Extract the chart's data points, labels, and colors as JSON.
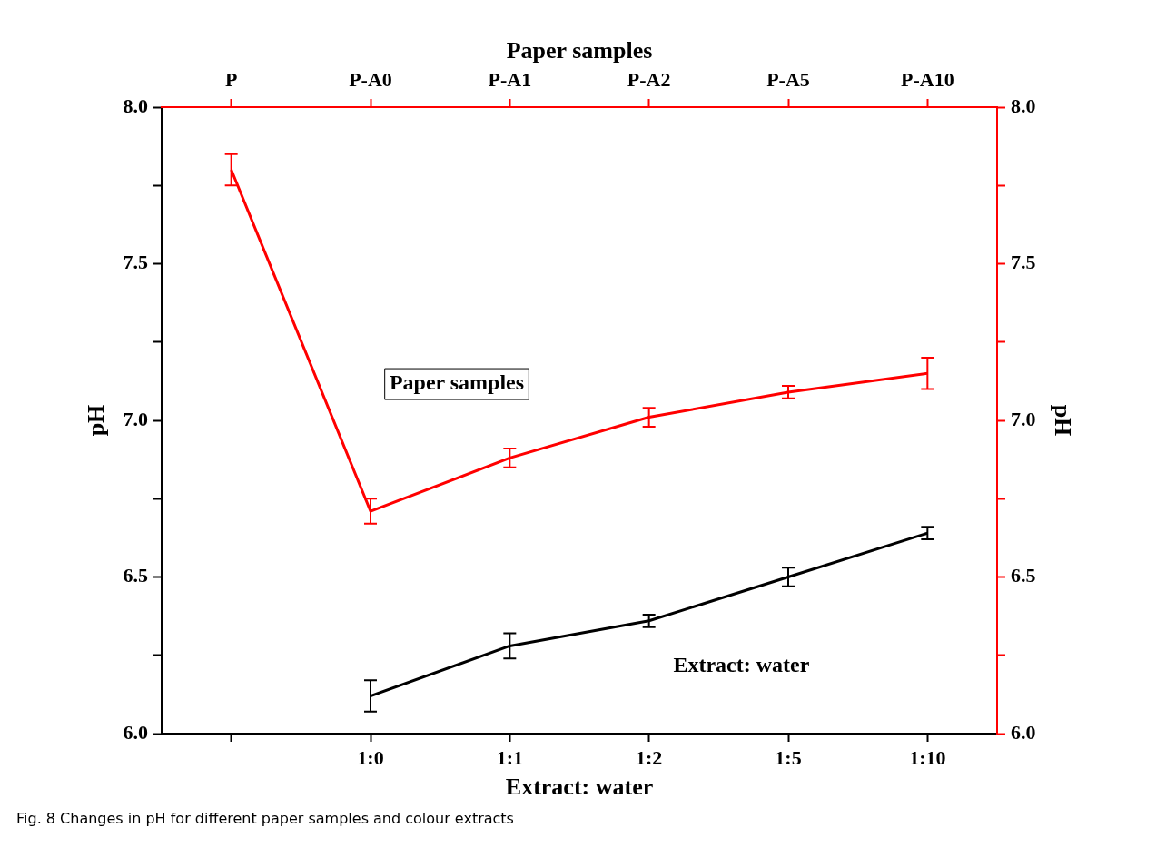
{
  "chart_data": [
    {
      "type": "line",
      "xlabel": "Paper samples",
      "ylabel": "pH",
      "categories": [
        "P",
        "P-A0",
        "P-A1",
        "P-A2",
        "P-A5",
        "P-A10"
      ],
      "ylim": [
        6,
        8
      ],
      "yticks": [
        {
          "value": 6,
          "label": "6.0"
        },
        {
          "value": 6.25,
          "label": null
        },
        {
          "value": 6.5,
          "label": "6.5"
        },
        {
          "value": 6.75,
          "label": null
        },
        {
          "value": 7,
          "label": "7.0"
        },
        {
          "value": 7.25,
          "label": null
        },
        {
          "value": 7.5,
          "label": "7.5"
        },
        {
          "value": 7.75,
          "label": null
        },
        {
          "value": 8,
          "label": "8.0"
        }
      ],
      "series": [
        {
          "name": "Paper samples",
          "color": "#ff0000",
          "values": [
            7.8,
            6.71,
            6.88,
            7.01,
            7.09,
            7.15
          ],
          "errors": [
            0.05,
            0.04,
            0.03,
            0.03,
            0.02,
            0.05
          ]
        }
      ],
      "grid": false,
      "legend": false,
      "marker": "none",
      "line_style": "solid"
    },
    {
      "type": "line",
      "xlabel": "Extract: water",
      "ylabel": "pH",
      "categories": [
        null,
        "1:0",
        "1:1",
        "1:2",
        "1:5",
        "1:10"
      ],
      "ylim": [
        6,
        8
      ],
      "yticks": [
        {
          "value": 6,
          "label": "6.0"
        },
        {
          "value": 6.25,
          "label": null
        },
        {
          "value": 6.5,
          "label": "6.5"
        },
        {
          "value": 6.75,
          "label": null
        },
        {
          "value": 7,
          "label": "7.0"
        },
        {
          "value": 7.25,
          "label": null
        },
        {
          "value": 7.5,
          "label": "7.5"
        },
        {
          "value": 7.75,
          "label": null
        },
        {
          "value": 8,
          "label": "8.0"
        }
      ],
      "series": [
        {
          "name": "Extract: water",
          "color": "#000000",
          "values": [
            null,
            6.12,
            6.28,
            6.36,
            6.5,
            6.64
          ],
          "errors": [
            null,
            0.05,
            0.04,
            0.02,
            0.03,
            0.02
          ]
        }
      ],
      "grid": false,
      "legend": false,
      "marker": "none",
      "line_style": "solid",
      "annotations": [
        "Fig. 8 Changes in pH for different paper samples and colour extracts"
      ]
    }
  ]
}
